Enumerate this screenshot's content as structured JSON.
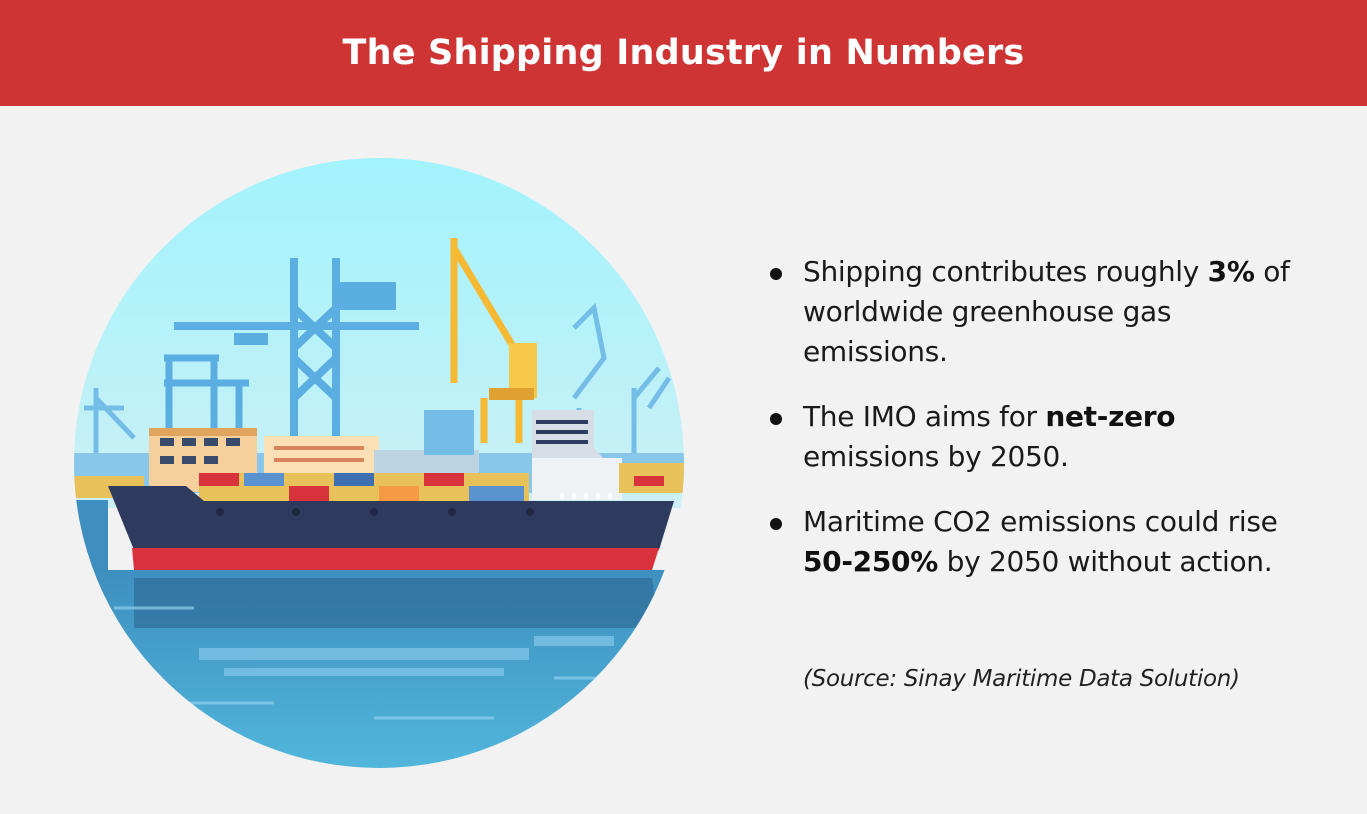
{
  "header": {
    "title": "The Shipping Industry in Numbers"
  },
  "illustration": {
    "icon": "cargo-ship-port-illustration"
  },
  "facts": [
    {
      "before": "Shipping contributes roughly ",
      "highlight": "3%",
      "after": " of worldwide greenhouse gas emissions."
    },
    {
      "before": "The IMO aims for ",
      "highlight": "net-zero",
      "after": " emissions by 2050."
    },
    {
      "before": "Maritime CO2 emissions could rise ",
      "highlight": "50-250%",
      "after": " by 2050 without action."
    }
  ],
  "source": "(Source: Sinay Maritime Data Solution)",
  "colors": {
    "header_bg": "#cf3434",
    "page_bg": "#f2f2f2",
    "sky": "#9eeefc",
    "water": "#3f9ec7",
    "hull": "#2e3a5e",
    "hull_bottom": "#d8333c",
    "crane_blue": "#5aaee2",
    "crane_yellow": "#f6b934"
  }
}
